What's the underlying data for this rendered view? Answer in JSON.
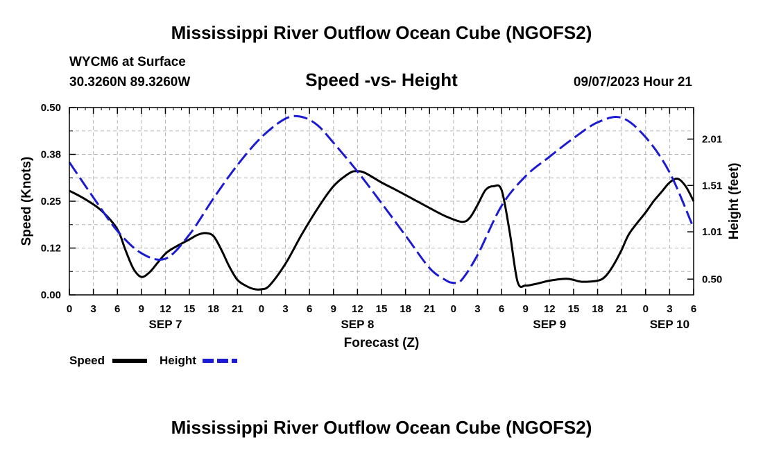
{
  "title": "Mississippi River Outflow Ocean Cube (NGOFS2)",
  "title_repeat": "Mississippi River Outflow Ocean Cube (NGOFS2)",
  "station": "WYCM6 at Surface",
  "location": "30.3260N  89.3260W",
  "subtitle": "Speed -vs- Height",
  "timestamp": "09/07/2023 Hour 21",
  "legend": {
    "speed_label": "Speed",
    "height_label": "Height"
  },
  "chart_data": {
    "type": "line",
    "title": "Speed -vs- Height",
    "xlabel": "Forecast (Z)",
    "ylabel": "Speed (Knots)",
    "y2label": "Height (feet)",
    "xlim": [
      0,
      78
    ],
    "ylim": [
      0,
      0.5
    ],
    "y2lim": [
      0.33,
      2.35
    ],
    "grid": true,
    "legend_position": "bottom-left",
    "x_tick_labels": [
      "0",
      "3",
      "6",
      "9",
      "12",
      "15",
      "18",
      "21",
      "0",
      "3",
      "6",
      "9",
      "12",
      "15",
      "18",
      "21",
      "0",
      "3",
      "6",
      "9",
      "12",
      "15",
      "18",
      "21",
      "0",
      "3",
      "6"
    ],
    "date_labels": [
      {
        "x": 12,
        "label": "SEP 7"
      },
      {
        "x": 36,
        "label": "SEP 8"
      },
      {
        "x": 60,
        "label": "SEP 9"
      },
      {
        "x": 75,
        "label": "SEP 10"
      }
    ],
    "y_ticks": [
      {
        "value": 0.0,
        "label": "0.00"
      },
      {
        "value": 0.125,
        "label": "0.12"
      },
      {
        "value": 0.25,
        "label": "0.25"
      },
      {
        "value": 0.375,
        "label": "0.38"
      },
      {
        "value": 0.5,
        "label": "0.50"
      }
    ],
    "y2_ticks": [
      {
        "value": 0.5,
        "label": "0.50"
      },
      {
        "value": 1.01,
        "label": "1.01"
      },
      {
        "value": 1.51,
        "label": "1.51"
      },
      {
        "value": 2.01,
        "label": "2.01"
      }
    ],
    "series": [
      {
        "name": "Speed",
        "axis": "left",
        "color": "#000000",
        "dash": "solid",
        "x": [
          0,
          2,
          4,
          6,
          7,
          8,
          9,
          10,
          11,
          12,
          13,
          15,
          16,
          17,
          18,
          19,
          20,
          21,
          22,
          23,
          24,
          25,
          27,
          29,
          31,
          33,
          35,
          36,
          37,
          39,
          41,
          43,
          45,
          47,
          49,
          50,
          51,
          52,
          53,
          54,
          55,
          56,
          57,
          58,
          59,
          60,
          62,
          63,
          64,
          66,
          67,
          68,
          69,
          70,
          72,
          73,
          74,
          75,
          76,
          77,
          78
        ],
        "values": [
          0.278,
          0.255,
          0.225,
          0.175,
          0.12,
          0.07,
          0.048,
          0.06,
          0.085,
          0.11,
          0.125,
          0.148,
          0.16,
          0.165,
          0.157,
          0.12,
          0.075,
          0.04,
          0.025,
          0.016,
          0.015,
          0.025,
          0.083,
          0.16,
          0.23,
          0.29,
          0.325,
          0.33,
          0.325,
          0.3,
          0.278,
          0.255,
          0.232,
          0.21,
          0.195,
          0.205,
          0.24,
          0.28,
          0.29,
          0.28,
          0.17,
          0.035,
          0.025,
          0.028,
          0.033,
          0.038,
          0.043,
          0.04,
          0.035,
          0.038,
          0.05,
          0.08,
          0.12,
          0.165,
          0.22,
          0.25,
          0.275,
          0.3,
          0.31,
          0.29,
          0.25
        ]
      },
      {
        "name": "Height",
        "axis": "right",
        "color": "#1b1bd4",
        "dash": "dashed",
        "x": [
          0,
          3,
          6,
          9,
          12,
          15,
          18,
          21,
          24,
          27,
          29,
          31,
          33,
          36,
          39,
          42,
          45,
          47,
          48,
          49,
          51,
          54,
          57,
          60,
          63,
          66,
          69,
          72,
          75,
          78
        ],
        "values": [
          1.76,
          1.38,
          1.02,
          0.78,
          0.72,
          0.98,
          1.37,
          1.73,
          2.03,
          2.23,
          2.25,
          2.16,
          1.97,
          1.66,
          1.32,
          0.97,
          0.62,
          0.49,
          0.46,
          0.49,
          0.76,
          1.29,
          1.61,
          1.82,
          2.02,
          2.19,
          2.24,
          2.03,
          1.65,
          1.05
        ]
      }
    ]
  }
}
